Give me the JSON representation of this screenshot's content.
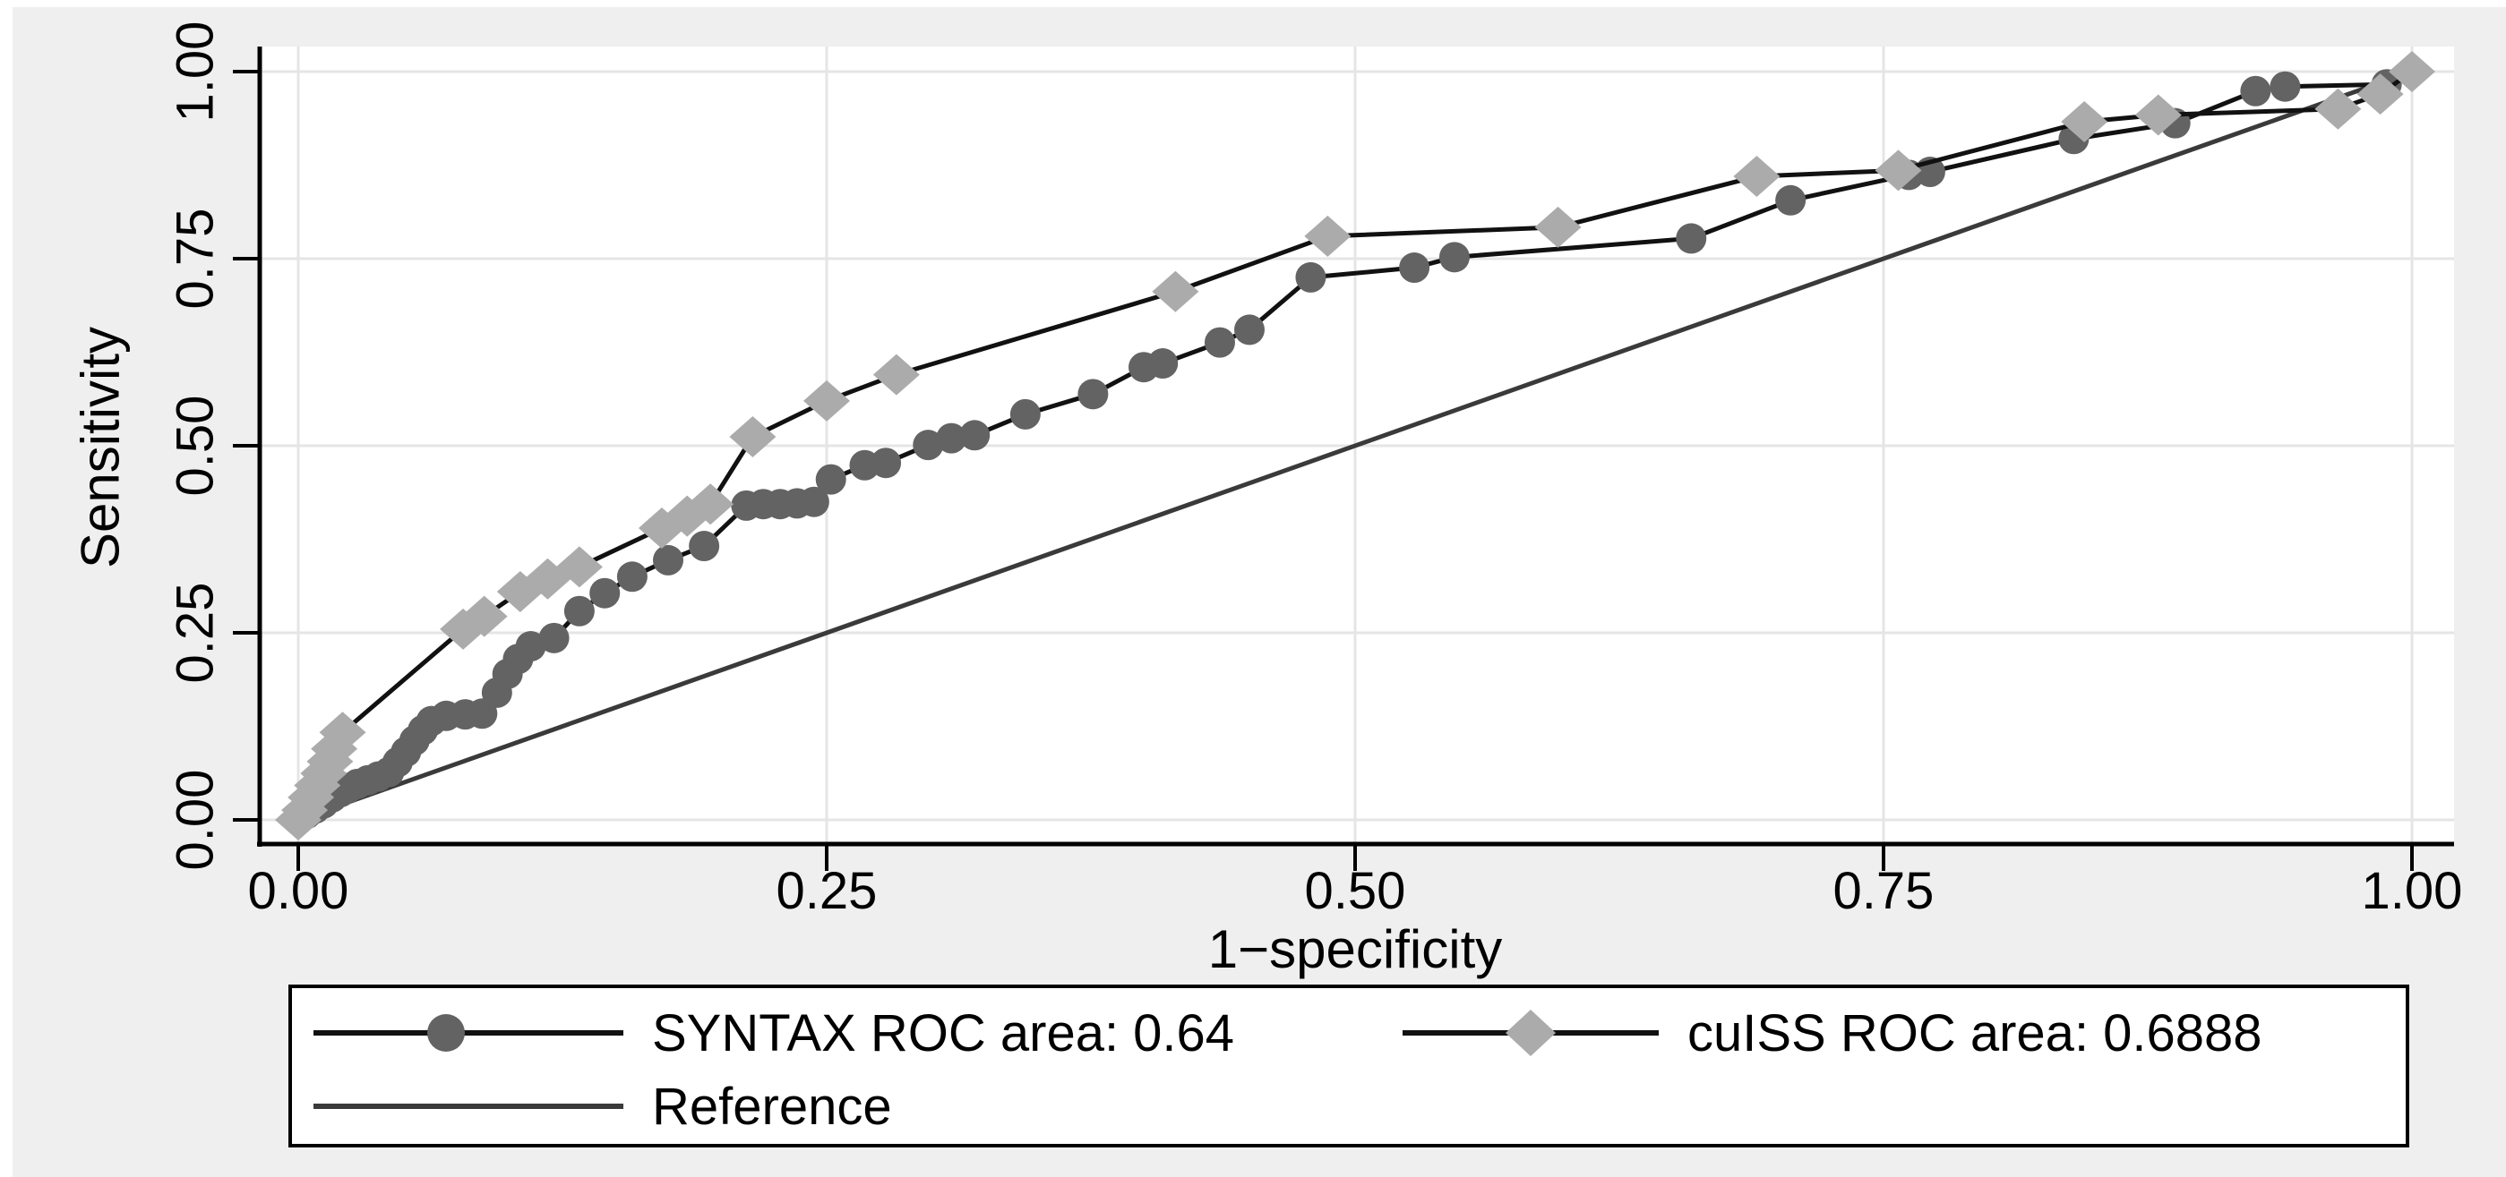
{
  "figure": {
    "background_color": "#efefef",
    "panel_color": "#ffffff",
    "grid_color": "#e5e5e5",
    "axis_color": "#000000",
    "text_color": "#000000"
  },
  "axes": {
    "x_title": "1−specificity",
    "y_title": "Sensitivity",
    "x_tick_labels": [
      "0.00",
      "0.25",
      "0.50",
      "0.75",
      "1.00"
    ],
    "y_tick_labels": [
      "0.00",
      "0.25",
      "0.50",
      "0.75",
      "1.00"
    ]
  },
  "legend": {
    "entries": [
      {
        "label": "SYNTAX ROC area: 0.64",
        "marker": "circle",
        "marker_color": "#636363",
        "line_color": "#111111"
      },
      {
        "label": "cuISS ROC area: 0.6888",
        "marker": "diamond",
        "marker_color": "#ababab",
        "line_color": "#111111"
      },
      {
        "label": "Reference",
        "marker": "none",
        "marker_color": "#3a3a3a",
        "line_color": "#3a3a3a"
      }
    ]
  },
  "chart_data": {
    "type": "line",
    "title": "",
    "xlabel": "1−specificity",
    "ylabel": "Sensitivity",
    "xlim": [
      0,
      1
    ],
    "ylim": [
      0,
      1
    ],
    "x_ticks": [
      0,
      0.25,
      0.5,
      0.75,
      1.0
    ],
    "y_ticks": [
      0,
      0.25,
      0.5,
      0.75,
      1.0
    ],
    "grid": true,
    "legend_position": "bottom",
    "series": [
      {
        "name": "SYNTAX ROC area: 0.64",
        "marker": "circle",
        "marker_color": "#636363",
        "line_color": "#111111",
        "line_width": 5,
        "auc": 0.64,
        "points": [
          [
            0.0,
            0.0
          ],
          [
            0.004,
            0.008
          ],
          [
            0.008,
            0.015
          ],
          [
            0.012,
            0.022
          ],
          [
            0.016,
            0.03
          ],
          [
            0.02,
            0.037
          ],
          [
            0.024,
            0.043
          ],
          [
            0.028,
            0.048
          ],
          [
            0.033,
            0.053
          ],
          [
            0.038,
            0.058
          ],
          [
            0.043,
            0.064
          ],
          [
            0.047,
            0.077
          ],
          [
            0.051,
            0.091
          ],
          [
            0.055,
            0.106
          ],
          [
            0.059,
            0.12
          ],
          [
            0.063,
            0.132
          ],
          [
            0.07,
            0.139
          ],
          [
            0.079,
            0.141
          ],
          [
            0.087,
            0.142
          ],
          [
            0.094,
            0.17
          ],
          [
            0.099,
            0.195
          ],
          [
            0.104,
            0.215
          ],
          [
            0.11,
            0.232
          ],
          [
            0.121,
            0.243
          ],
          [
            0.133,
            0.279
          ],
          [
            0.145,
            0.303
          ],
          [
            0.158,
            0.325
          ],
          [
            0.175,
            0.347
          ],
          [
            0.192,
            0.366
          ],
          [
            0.212,
            0.42
          ],
          [
            0.22,
            0.422
          ],
          [
            0.228,
            0.422
          ],
          [
            0.236,
            0.423
          ],
          [
            0.244,
            0.425
          ],
          [
            0.252,
            0.455
          ],
          [
            0.268,
            0.474
          ],
          [
            0.278,
            0.477
          ],
          [
            0.298,
            0.501
          ],
          [
            0.309,
            0.51
          ],
          [
            0.32,
            0.514
          ],
          [
            0.344,
            0.542
          ],
          [
            0.376,
            0.569
          ],
          [
            0.4,
            0.605
          ],
          [
            0.409,
            0.61
          ],
          [
            0.436,
            0.638
          ],
          [
            0.45,
            0.655
          ],
          [
            0.479,
            0.725
          ],
          [
            0.528,
            0.738
          ],
          [
            0.547,
            0.752
          ],
          [
            0.659,
            0.777
          ],
          [
            0.706,
            0.828
          ],
          [
            0.762,
            0.862
          ],
          [
            0.772,
            0.866
          ],
          [
            0.84,
            0.91
          ],
          [
            0.888,
            0.931
          ],
          [
            0.926,
            0.974
          ],
          [
            0.94,
            0.98
          ],
          [
            0.988,
            0.983
          ],
          [
            1.0,
            1.0
          ]
        ]
      },
      {
        "name": "cuISS ROC area: 0.6888",
        "marker": "diamond",
        "marker_color": "#ababab",
        "line_color": "#111111",
        "line_width": 5,
        "auc": 0.6888,
        "points": [
          [
            0.0,
            0.0
          ],
          [
            0.003,
            0.013
          ],
          [
            0.006,
            0.03
          ],
          [
            0.009,
            0.046
          ],
          [
            0.012,
            0.062
          ],
          [
            0.015,
            0.078
          ],
          [
            0.017,
            0.095
          ],
          [
            0.021,
            0.117
          ],
          [
            0.078,
            0.255
          ],
          [
            0.088,
            0.272
          ],
          [
            0.105,
            0.305
          ],
          [
            0.118,
            0.322
          ],
          [
            0.133,
            0.338
          ],
          [
            0.172,
            0.39
          ],
          [
            0.184,
            0.406
          ],
          [
            0.195,
            0.422
          ],
          [
            0.215,
            0.512
          ],
          [
            0.25,
            0.56
          ],
          [
            0.283,
            0.595
          ],
          [
            0.415,
            0.706
          ],
          [
            0.487,
            0.78
          ],
          [
            0.596,
            0.792
          ],
          [
            0.69,
            0.86
          ],
          [
            0.757,
            0.868
          ],
          [
            0.845,
            0.933
          ],
          [
            0.88,
            0.942
          ],
          [
            0.965,
            0.95
          ],
          [
            0.985,
            0.97
          ],
          [
            1.0,
            1.0
          ]
        ]
      },
      {
        "name": "Reference",
        "marker": "none",
        "marker_color": "#3a3a3a",
        "line_color": "#3a3a3a",
        "line_width": 5,
        "points": [
          [
            0.0,
            0.0
          ],
          [
            1.0,
            1.0
          ]
        ]
      }
    ]
  }
}
